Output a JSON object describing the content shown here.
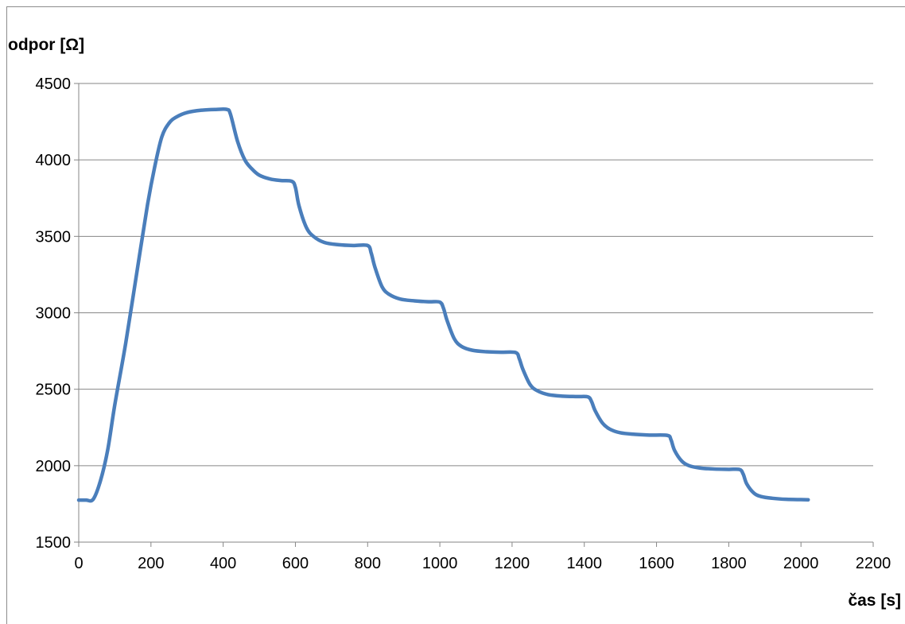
{
  "chart_data": {
    "type": "line",
    "title": "",
    "xlabel": "čas [s]",
    "ylabel": "odpor [Ω]",
    "xlim": [
      0,
      2200
    ],
    "ylim": [
      1500,
      4500
    ],
    "xticks": [
      0,
      200,
      400,
      600,
      800,
      1000,
      1200,
      1400,
      1600,
      1800,
      2000,
      2200
    ],
    "yticks": [
      1500,
      2000,
      2500,
      3000,
      3500,
      4000,
      4500
    ],
    "grid": "horizontal",
    "legend": "none",
    "series": [
      {
        "color": "#4a7ebb",
        "x": [
          0,
          20,
          40,
          60,
          80,
          100,
          130,
          160,
          190,
          210,
          230,
          250,
          270,
          300,
          340,
          380,
          410,
          420,
          440,
          460,
          480,
          500,
          530,
          560,
          590,
          600,
          610,
          630,
          650,
          680,
          720,
          760,
          800,
          810,
          820,
          840,
          860,
          890,
          930,
          970,
          1000,
          1010,
          1020,
          1040,
          1060,
          1090,
          1130,
          1170,
          1210,
          1220,
          1230,
          1250,
          1270,
          1300,
          1340,
          1380,
          1410,
          1420,
          1430,
          1450,
          1470,
          1500,
          1540,
          1580,
          1630,
          1640,
          1650,
          1670,
          1690,
          1720,
          1760,
          1800,
          1830,
          1840,
          1850,
          1870,
          1890,
          1920,
          1960,
          2000,
          2020
        ],
        "y": [
          1775,
          1775,
          1780,
          1900,
          2100,
          2400,
          2800,
          3250,
          3700,
          3950,
          4150,
          4240,
          4280,
          4310,
          4325,
          4330,
          4330,
          4300,
          4120,
          4000,
          3940,
          3900,
          3875,
          3865,
          3860,
          3820,
          3700,
          3560,
          3500,
          3460,
          3445,
          3440,
          3440,
          3390,
          3300,
          3170,
          3120,
          3090,
          3078,
          3072,
          3070,
          3030,
          2950,
          2830,
          2780,
          2755,
          2745,
          2742,
          2740,
          2700,
          2630,
          2530,
          2490,
          2465,
          2455,
          2452,
          2450,
          2420,
          2360,
          2280,
          2240,
          2215,
          2205,
          2200,
          2198,
          2170,
          2100,
          2030,
          2000,
          1985,
          1978,
          1976,
          1975,
          1945,
          1880,
          1820,
          1798,
          1787,
          1780,
          1778,
          1777
        ]
      }
    ]
  }
}
